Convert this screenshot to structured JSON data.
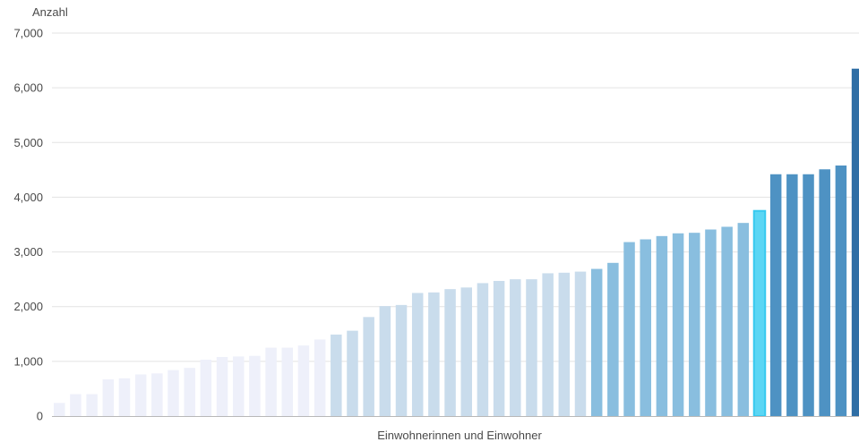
{
  "chart_data": {
    "type": "bar",
    "title": "",
    "xlabel": "Einwohnerinnen und Einwohner",
    "ylabel": "Anzahl",
    "ylim": [
      0,
      7000
    ],
    "yticks": [
      {
        "value": 0,
        "label": "0"
      },
      {
        "value": 1000,
        "label": "1,000"
      },
      {
        "value": 2000,
        "label": "2,000"
      },
      {
        "value": 3000,
        "label": "3,000"
      },
      {
        "value": 4000,
        "label": "4,000"
      },
      {
        "value": 5000,
        "label": "5,000"
      },
      {
        "value": 6000,
        "label": "6,000"
      },
      {
        "value": 7000,
        "label": "7,000"
      }
    ],
    "grid": true,
    "legend": "none",
    "values": [
      240,
      400,
      400,
      670,
      690,
      760,
      780,
      840,
      880,
      1030,
      1080,
      1090,
      1100,
      1250,
      1250,
      1290,
      1400,
      1490,
      1560,
      1810,
      2010,
      2030,
      2250,
      2260,
      2320,
      2350,
      2430,
      2470,
      2500,
      2500,
      2610,
      2620,
      2640,
      2690,
      2800,
      3180,
      3230,
      3290,
      3340,
      3350,
      3410,
      3460,
      3530,
      3750,
      4420,
      4420,
      4420,
      4510,
      4580,
      6350
    ],
    "bar_colors": [
      "#eef0fa",
      "#eef0fa",
      "#eef0fa",
      "#eef0fa",
      "#eef0fa",
      "#eef0fa",
      "#eef0fa",
      "#eef0fa",
      "#eef0fa",
      "#eef0fa",
      "#eef0fa",
      "#eef0fa",
      "#eef0fa",
      "#eef0fa",
      "#eef0fa",
      "#eef0fa",
      "#eef0fa",
      "#c9dcec",
      "#c9dcec",
      "#c9dcec",
      "#c9dcec",
      "#c9dcec",
      "#c9dcec",
      "#c9dcec",
      "#c9dcec",
      "#c9dcec",
      "#c9dcec",
      "#c9dcec",
      "#c9dcec",
      "#c9dcec",
      "#c9dcec",
      "#c9dcec",
      "#c9dcec",
      "#89bedf",
      "#89bedf",
      "#89bedf",
      "#89bedf",
      "#89bedf",
      "#89bedf",
      "#89bedf",
      "#89bedf",
      "#89bedf",
      "#89bedf",
      "#5bd6f4",
      "#4e92c3",
      "#4e92c3",
      "#4e92c3",
      "#4e92c3",
      "#4e92c3",
      "#2f6ea5"
    ],
    "highlight_index": 43,
    "highlight_stroke": "#37c9ef"
  }
}
